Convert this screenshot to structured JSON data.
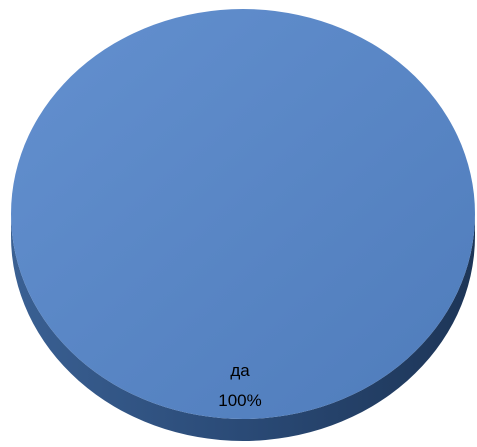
{
  "chart_data": {
    "type": "pie",
    "slices": [
      {
        "label": "да",
        "value": 100,
        "display": "100%"
      }
    ],
    "colors": {
      "top": "#5b87c6",
      "edge": "#2e4f7d",
      "edge_dark": "#1c3352"
    },
    "legend": "none"
  }
}
